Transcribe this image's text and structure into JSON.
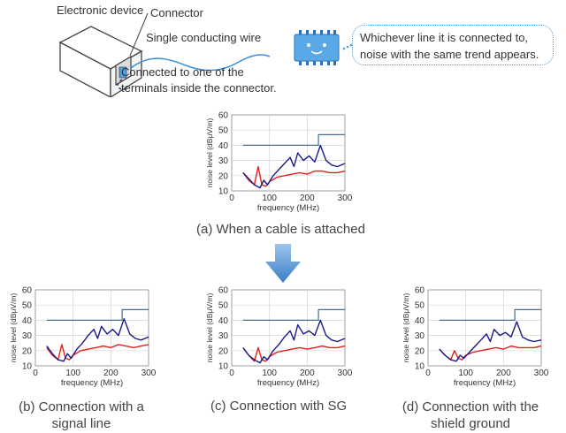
{
  "top": {
    "label_device": "Electronic device",
    "label_connector": "Connector",
    "label_wire": "Single conducting wire",
    "label_terminal_line1": "Connected to one of the",
    "label_terminal_line2": "terminals inside the connector.",
    "bubble_line1": "Whichever line it is connected to,",
    "bubble_line2": "noise with the same trend appears."
  },
  "captions": {
    "a": "(a) When a cable is attached",
    "b_line1": "(b) Connection with a",
    "b_line2": "signal line",
    "c": "(c) Connection with SG",
    "d_line1": "(d) Connection with the",
    "d_line2": "shield ground"
  },
  "colors": {
    "arrow": "#4a86c8",
    "limit": "#4a6d8c",
    "blue_series": "#1a1a8c",
    "red_series": "#e02020",
    "bubble_border": "#4a9ad8"
  },
  "chart_data": [
    {
      "id": "a",
      "type": "line",
      "xlabel": "frequency (MHz)",
      "ylabel": "noise level (dBμV/m)",
      "xlim": [
        0,
        300
      ],
      "ylim": [
        10,
        60
      ],
      "xticks": [
        0,
        100,
        200,
        300
      ],
      "yticks": [
        10,
        20,
        30,
        40,
        50,
        60
      ],
      "grid": true,
      "series": [
        {
          "role": "limit",
          "x": [
            30,
            230,
            230,
            300
          ],
          "y": [
            40,
            40,
            47,
            47
          ]
        },
        {
          "role": "blue",
          "x": [
            30,
            45,
            60,
            75,
            85,
            95,
            110,
            125,
            140,
            155,
            165,
            175,
            190,
            205,
            220,
            235,
            250,
            265,
            280,
            300
          ],
          "y": [
            22,
            18,
            14,
            12,
            17,
            14,
            20,
            24,
            28,
            32,
            26,
            35,
            30,
            33,
            29,
            40,
            30,
            27,
            26,
            28
          ]
        },
        {
          "role": "red",
          "x": [
            30,
            45,
            60,
            70,
            80,
            90,
            100,
            120,
            140,
            160,
            180,
            200,
            220,
            240,
            260,
            280,
            300
          ],
          "y": [
            22,
            17,
            14,
            26,
            14,
            13,
            16,
            19,
            20,
            21,
            22,
            21,
            23,
            23,
            22,
            22,
            23
          ]
        }
      ]
    },
    {
      "id": "b",
      "type": "line",
      "xlabel": "frequency (MHz)",
      "ylabel": "noise level (dBμV/m)",
      "xlim": [
        0,
        300
      ],
      "ylim": [
        10,
        60
      ],
      "xticks": [
        0,
        100,
        200,
        300
      ],
      "yticks": [
        10,
        20,
        30,
        40,
        50,
        60
      ],
      "grid": true,
      "series": [
        {
          "role": "limit",
          "x": [
            30,
            230,
            230,
            300
          ],
          "y": [
            40,
            40,
            47,
            47
          ]
        },
        {
          "role": "blue",
          "x": [
            30,
            45,
            60,
            75,
            85,
            95,
            110,
            125,
            140,
            155,
            165,
            175,
            190,
            205,
            220,
            235,
            250,
            265,
            280,
            300
          ],
          "y": [
            23,
            18,
            14,
            13,
            18,
            15,
            21,
            25,
            30,
            34,
            28,
            36,
            31,
            34,
            30,
            41,
            31,
            28,
            27,
            29
          ]
        },
        {
          "role": "red",
          "x": [
            30,
            45,
            60,
            70,
            80,
            90,
            100,
            120,
            140,
            160,
            180,
            200,
            220,
            240,
            260,
            280,
            300
          ],
          "y": [
            22,
            17,
            14,
            24,
            15,
            14,
            17,
            20,
            21,
            22,
            23,
            22,
            24,
            23,
            22,
            23,
            24
          ]
        }
      ]
    },
    {
      "id": "c",
      "type": "line",
      "xlabel": "frequency (MHz)",
      "ylabel": "noise level (dBμV/m)",
      "xlim": [
        0,
        300
      ],
      "ylim": [
        10,
        60
      ],
      "xticks": [
        0,
        100,
        200,
        300
      ],
      "yticks": [
        10,
        20,
        30,
        40,
        50,
        60
      ],
      "grid": true,
      "series": [
        {
          "role": "limit",
          "x": [
            30,
            230,
            230,
            300
          ],
          "y": [
            40,
            40,
            47,
            47
          ]
        },
        {
          "role": "blue",
          "x": [
            30,
            45,
            60,
            75,
            85,
            95,
            110,
            125,
            140,
            155,
            165,
            175,
            190,
            205,
            220,
            235,
            250,
            265,
            280,
            300
          ],
          "y": [
            22,
            17,
            14,
            12,
            16,
            14,
            20,
            24,
            29,
            33,
            27,
            37,
            31,
            33,
            30,
            40,
            30,
            27,
            26,
            28
          ]
        },
        {
          "role": "red",
          "x": [
            30,
            45,
            60,
            70,
            80,
            90,
            100,
            120,
            140,
            160,
            180,
            200,
            220,
            240,
            260,
            280,
            300
          ],
          "y": [
            22,
            17,
            13,
            22,
            14,
            13,
            16,
            19,
            20,
            21,
            22,
            21,
            22,
            23,
            22,
            22,
            23
          ]
        }
      ]
    },
    {
      "id": "d",
      "type": "line",
      "xlabel": "frequency (MHz)",
      "ylabel": "noise level (dBμV/m)",
      "xlim": [
        0,
        300
      ],
      "ylim": [
        10,
        60
      ],
      "xticks": [
        0,
        100,
        200,
        300
      ],
      "yticks": [
        10,
        20,
        30,
        40,
        50,
        60
      ],
      "grid": true,
      "series": [
        {
          "role": "limit",
          "x": [
            30,
            230,
            230,
            300
          ],
          "y": [
            40,
            40,
            47,
            47
          ]
        },
        {
          "role": "blue",
          "x": [
            30,
            45,
            60,
            75,
            85,
            95,
            110,
            125,
            140,
            155,
            165,
            175,
            190,
            205,
            220,
            235,
            250,
            265,
            280,
            300
          ],
          "y": [
            21,
            17,
            14,
            13,
            17,
            15,
            19,
            23,
            27,
            31,
            26,
            34,
            30,
            32,
            29,
            39,
            29,
            27,
            26,
            27
          ]
        },
        {
          "role": "red",
          "x": [
            30,
            45,
            60,
            70,
            80,
            90,
            100,
            120,
            140,
            160,
            180,
            200,
            220,
            240,
            260,
            280,
            300
          ],
          "y": [
            21,
            17,
            14,
            20,
            15,
            14,
            17,
            19,
            20,
            21,
            22,
            21,
            23,
            22,
            22,
            22,
            23
          ]
        }
      ]
    }
  ]
}
